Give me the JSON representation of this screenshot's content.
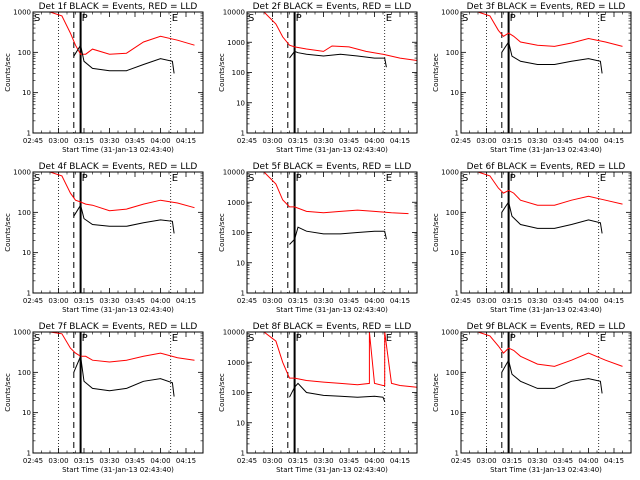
{
  "figure": {
    "panels": [
      {
        "det": "1f",
        "title": "Det 1f BLACK = Events, RED = LLD",
        "xlabel": "Start Time (31-Jan-13 02:43:40)",
        "ylabel": "Counts/sec"
      },
      {
        "det": "2f",
        "title": "Det 2f BLACK = Events, RED = LLD",
        "xlabel": "Start Time (31-Jan-13 02:43:40)",
        "ylabel": "Counts/sec"
      },
      {
        "det": "3f",
        "title": "Det 3f BLACK = Events, RED = LLD",
        "xlabel": "Start Time (31-Jan-13 02:43:40)",
        "ylabel": "Counts/sec"
      },
      {
        "det": "4f",
        "title": "Det 4f BLACK = Events, RED = LLD",
        "xlabel": "Start Time (31-Jan-13 02:43:40)",
        "ylabel": "Counts/sec"
      },
      {
        "det": "5f",
        "title": "Det 5f BLACK = Events, RED = LLD",
        "xlabel": "Start Time (31-Jan-13 02:43:40)",
        "ylabel": "Counts/sec"
      },
      {
        "det": "6f",
        "title": "Det 6f BLACK = Events, RED = LLD",
        "xlabel": "Start Time (31-Jan-13 02:43:40)",
        "ylabel": "Counts/sec"
      },
      {
        "det": "7f",
        "title": "Det 7f BLACK = Events, RED = LLD",
        "xlabel": "Start Time (31-Jan-13 02:43:40)",
        "ylabel": "Counts/sec"
      },
      {
        "det": "8f",
        "title": "Det 8f BLACK = Events, RED = LLD",
        "xlabel": "Start Time (31-Jan-13 02:43:40)",
        "ylabel": "Counts/sec"
      },
      {
        "det": "9f",
        "title": "Det 9f BLACK = Events, RED = LLD",
        "xlabel": "Start Time (31-Jan-13 02:43:40)",
        "ylabel": "Counts/sec"
      }
    ]
  },
  "chart_data": [
    {
      "type": "line",
      "title": "Det 1f BLACK = Events, RED = LLD",
      "xlabel": "Start Time (31-Jan-13 02:43:40)",
      "ylabel": "Counts/sec",
      "yscale": "log",
      "ylim": [
        1,
        1000
      ],
      "xlim": [
        "02:45",
        "04:25"
      ],
      "xticks": [
        "02:45",
        "03:00",
        "03:15",
        "03:30",
        "03:45",
        "04:00",
        "04:15"
      ],
      "yticks": [
        "1",
        "10",
        "100",
        "1000"
      ],
      "markers": {
        "S": "02:45",
        "P": "03:13",
        "E": "04:06"
      },
      "vlines": {
        "dotted": [
          "03:00",
          "04:06"
        ],
        "dashed": "03:09",
        "solid": "03:13"
      },
      "series": [
        {
          "color": "#ff0000",
          "x": [
            "02:45",
            "02:55",
            "03:02",
            "03:07",
            "03:10",
            "03:13",
            "03:16",
            "03:20",
            "03:30",
            "03:40",
            "03:50",
            "04:00",
            "04:10",
            "04:20"
          ],
          "y": [
            1000,
            1000,
            800,
            300,
            150,
            90,
            90,
            120,
            90,
            95,
            180,
            250,
            200,
            150
          ]
        },
        {
          "color": "#000000",
          "x": [
            "03:09",
            "03:13",
            "03:15",
            "03:20",
            "03:30",
            "03:40",
            "03:50",
            "04:00",
            "04:07",
            "04:08"
          ],
          "y": [
            80,
            150,
            60,
            40,
            35,
            35,
            50,
            70,
            60,
            30
          ]
        }
      ]
    },
    {
      "type": "line",
      "title": "Det 2f BLACK = Events, RED = LLD",
      "xlabel": "Start Time (31-Jan-13 02:43:40)",
      "ylabel": "Counts/sec",
      "yscale": "log",
      "ylim": [
        1,
        10000
      ],
      "xlim": [
        "02:45",
        "04:25"
      ],
      "xticks": [
        "02:45",
        "03:00",
        "03:15",
        "03:30",
        "03:45",
        "04:00",
        "04:15"
      ],
      "yticks": [
        "1",
        "10",
        "100",
        "1000",
        "10000"
      ],
      "markers": {
        "S": "02:45",
        "P": "03:13",
        "E": "04:06"
      },
      "vlines": {
        "dotted": [
          "03:00",
          "04:06"
        ],
        "dashed": "03:09",
        "solid": "03:13"
      },
      "series": [
        {
          "color": "#ff0000",
          "x": [
            "02:45",
            "02:55",
            "03:02",
            "03:06",
            "03:10",
            "03:13",
            "03:20",
            "03:30",
            "03:35",
            "03:45",
            "03:55",
            "04:05",
            "04:15",
            "04:25"
          ],
          "y": [
            10000,
            10000,
            4000,
            1500,
            800,
            700,
            600,
            500,
            750,
            700,
            500,
            400,
            300,
            250
          ]
        },
        {
          "color": "#000000",
          "x": [
            "03:10",
            "03:13",
            "03:15",
            "03:20",
            "03:30",
            "03:40",
            "03:50",
            "04:00",
            "04:06",
            "04:07"
          ],
          "y": [
            300,
            500,
            450,
            400,
            350,
            400,
            350,
            300,
            300,
            150
          ]
        }
      ]
    },
    {
      "type": "line",
      "title": "Det 3f BLACK = Events, RED = LLD",
      "xlabel": "Start Time (31-Jan-13 02:43:40)",
      "ylabel": "Counts/sec",
      "yscale": "log",
      "ylim": [
        1,
        1000
      ],
      "xlim": [
        "02:45",
        "04:25"
      ],
      "xticks": [
        "02:45",
        "03:00",
        "03:15",
        "03:30",
        "03:45",
        "04:00",
        "04:15"
      ],
      "yticks": [
        "1",
        "10",
        "100",
        "1000"
      ],
      "markers": {
        "S": "02:45",
        "P": "03:13",
        "E": "04:06"
      },
      "vlines": {
        "dotted": [
          "03:00",
          "04:06"
        ],
        "dashed": "03:09",
        "solid": "03:13"
      },
      "series": [
        {
          "color": "#ff0000",
          "x": [
            "02:45",
            "02:55",
            "03:02",
            "03:07",
            "03:10",
            "03:13",
            "03:16",
            "03:20",
            "03:30",
            "03:40",
            "03:50",
            "04:00",
            "04:10",
            "04:20"
          ],
          "y": [
            1000,
            1000,
            800,
            350,
            250,
            300,
            250,
            180,
            150,
            140,
            170,
            220,
            180,
            140
          ]
        },
        {
          "color": "#000000",
          "x": [
            "03:09",
            "03:13",
            "03:15",
            "03:20",
            "03:30",
            "03:40",
            "03:50",
            "04:00",
            "04:07",
            "04:08"
          ],
          "y": [
            100,
            180,
            80,
            60,
            50,
            50,
            60,
            70,
            60,
            30
          ]
        }
      ]
    },
    {
      "type": "line",
      "title": "Det 4f BLACK = Events, RED = LLD",
      "xlabel": "Start Time (31-Jan-13 02:43:40)",
      "ylabel": "Counts/sec",
      "yscale": "log",
      "ylim": [
        1,
        1000
      ],
      "xlim": [
        "02:45",
        "04:25"
      ],
      "xticks": [
        "02:45",
        "03:00",
        "03:15",
        "03:30",
        "03:45",
        "04:00",
        "04:15"
      ],
      "yticks": [
        "1",
        "10",
        "100",
        "1000"
      ],
      "markers": {
        "S": "02:45",
        "P": "03:13",
        "E": "04:06"
      },
      "vlines": {
        "dotted": [
          "03:00",
          "04:06"
        ],
        "dashed": "03:09",
        "solid": "03:13"
      },
      "series": [
        {
          "color": "#ff0000",
          "x": [
            "02:45",
            "02:55",
            "03:02",
            "03:07",
            "03:10",
            "03:13",
            "03:16",
            "03:20",
            "03:30",
            "03:40",
            "03:50",
            "04:00",
            "04:10",
            "04:20"
          ],
          "y": [
            1000,
            1000,
            800,
            300,
            200,
            180,
            160,
            150,
            110,
            120,
            160,
            200,
            170,
            130
          ]
        },
        {
          "color": "#000000",
          "x": [
            "03:09",
            "03:13",
            "03:15",
            "03:20",
            "03:30",
            "03:40",
            "03:50",
            "04:00",
            "04:07",
            "04:08"
          ],
          "y": [
            80,
            150,
            70,
            50,
            45,
            45,
            55,
            65,
            60,
            30
          ]
        }
      ]
    },
    {
      "type": "line",
      "title": "Det 5f BLACK = Events, RED = LLD",
      "xlabel": "Start Time (31-Jan-13 02:43:40)",
      "ylabel": "Counts/sec",
      "yscale": "log",
      "ylim": [
        1,
        10000
      ],
      "xlim": [
        "02:45",
        "04:25"
      ],
      "xticks": [
        "02:45",
        "03:00",
        "03:15",
        "03:30",
        "03:45",
        "04:00",
        "04:15"
      ],
      "yticks": [
        "1",
        "10",
        "100",
        "1000",
        "10000"
      ],
      "markers": {
        "S": "02:45",
        "P": "03:13",
        "E": "04:06"
      },
      "vlines": {
        "dotted": [
          "03:00",
          "04:06"
        ],
        "dashed": "03:09",
        "solid": "03:13"
      },
      "series": [
        {
          "color": "#ff0000",
          "x": [
            "02:45",
            "02:55",
            "03:02",
            "03:06",
            "03:10",
            "03:13",
            "03:20",
            "03:30",
            "03:40",
            "03:50",
            "04:00",
            "04:10",
            "04:20"
          ],
          "y": [
            10000,
            10000,
            4000,
            1200,
            700,
            700,
            500,
            450,
            500,
            550,
            500,
            450,
            420
          ]
        },
        {
          "color": "#000000",
          "x": [
            "03:10",
            "03:13",
            "03:15",
            "03:20",
            "03:30",
            "03:40",
            "03:50",
            "04:00",
            "04:06",
            "04:07"
          ],
          "y": [
            40,
            60,
            150,
            110,
            90,
            90,
            100,
            110,
            110,
            60
          ]
        }
      ]
    },
    {
      "type": "line",
      "title": "Det 6f BLACK = Events, RED = LLD",
      "xlabel": "Start Time (31-Jan-13 02:43:40)",
      "ylabel": "Counts/sec",
      "yscale": "log",
      "ylim": [
        1,
        1000
      ],
      "xlim": [
        "02:45",
        "04:25"
      ],
      "xticks": [
        "02:45",
        "03:00",
        "03:15",
        "03:30",
        "03:45",
        "04:00",
        "04:15"
      ],
      "yticks": [
        "1",
        "10",
        "100",
        "1000"
      ],
      "markers": {
        "S": "02:45",
        "P": "03:13",
        "E": "04:06"
      },
      "vlines": {
        "dotted": [
          "03:00",
          "04:06"
        ],
        "dashed": "03:09",
        "solid": "03:13"
      },
      "series": [
        {
          "color": "#ff0000",
          "x": [
            "02:45",
            "02:55",
            "03:02",
            "03:07",
            "03:10",
            "03:13",
            "03:16",
            "03:20",
            "03:30",
            "03:40",
            "03:50",
            "04:00",
            "04:10",
            "04:20"
          ],
          "y": [
            1000,
            1000,
            800,
            400,
            300,
            350,
            300,
            200,
            150,
            150,
            200,
            250,
            200,
            160
          ]
        },
        {
          "color": "#000000",
          "x": [
            "03:09",
            "03:13",
            "03:15",
            "03:20",
            "03:30",
            "03:40",
            "03:50",
            "04:00",
            "04:07",
            "04:08"
          ],
          "y": [
            100,
            180,
            80,
            50,
            40,
            40,
            50,
            65,
            55,
            30
          ]
        }
      ]
    },
    {
      "type": "line",
      "title": "Det 7f BLACK = Events, RED = LLD",
      "xlabel": "Start Time (31-Jan-13 02:43:40)",
      "ylabel": "Counts/sec",
      "yscale": "log",
      "ylim": [
        1,
        1000
      ],
      "xlim": [
        "02:45",
        "04:25"
      ],
      "xticks": [
        "02:45",
        "03:00",
        "03:15",
        "03:30",
        "03:45",
        "04:00",
        "04:15"
      ],
      "yticks": [
        "1",
        "10",
        "100",
        "1000"
      ],
      "markers": {
        "S": "02:45",
        "P": "03:13",
        "E": "04:06"
      },
      "vlines": {
        "dotted": [
          "03:00",
          "04:06"
        ],
        "dashed": "03:09",
        "solid": "03:13"
      },
      "series": [
        {
          "color": "#ff0000",
          "x": [
            "02:45",
            "02:55",
            "03:02",
            "03:07",
            "03:10",
            "03:13",
            "03:16",
            "03:20",
            "03:30",
            "03:40",
            "03:50",
            "04:00",
            "04:10",
            "04:20"
          ],
          "y": [
            1000,
            1000,
            900,
            400,
            300,
            250,
            250,
            200,
            180,
            200,
            250,
            300,
            230,
            200
          ]
        },
        {
          "color": "#000000",
          "x": [
            "03:09",
            "03:13",
            "03:15",
            "03:20",
            "03:30",
            "03:40",
            "03:50",
            "04:00",
            "04:07",
            "04:08"
          ],
          "y": [
            100,
            250,
            60,
            40,
            35,
            40,
            60,
            70,
            55,
            25
          ]
        }
      ]
    },
    {
      "type": "line",
      "title": "Det 8f BLACK = Events, RED = LLD",
      "xlabel": "Start Time (31-Jan-13 02:43:40)",
      "ylabel": "Counts/sec",
      "yscale": "log",
      "ylim": [
        1,
        10000
      ],
      "xlim": [
        "02:45",
        "04:25"
      ],
      "xticks": [
        "02:45",
        "03:00",
        "03:15",
        "03:30",
        "03:45",
        "04:00",
        "04:15"
      ],
      "yticks": [
        "1",
        "10",
        "100",
        "1000",
        "10000"
      ],
      "markers": {
        "S": "02:45",
        "P": "03:13",
        "E": "04:06"
      },
      "vlines": {
        "dotted": [
          "03:00",
          "04:06"
        ],
        "dashed": "03:09",
        "solid": "03:13"
      },
      "series": [
        {
          "color": "#ff0000",
          "x": [
            "02:45",
            "02:55",
            "03:02",
            "03:06",
            "03:10",
            "03:13",
            "03:20",
            "03:30",
            "03:40",
            "03:50",
            "03:57",
            "03:57",
            "04:00",
            "04:05",
            "04:06",
            "04:06",
            "04:10",
            "04:15",
            "04:25"
          ],
          "y": [
            10000,
            10000,
            5000,
            1000,
            300,
            300,
            250,
            220,
            200,
            180,
            200,
            10000,
            200,
            170,
            170,
            10000,
            200,
            170,
            150
          ]
        },
        {
          "color": "#000000",
          "x": [
            "03:10",
            "03:13",
            "03:15",
            "03:20",
            "03:30",
            "03:40",
            "03:50",
            "04:00",
            "04:05",
            "04:06"
          ],
          "y": [
            70,
            150,
            200,
            100,
            80,
            75,
            70,
            75,
            70,
            50
          ]
        }
      ]
    },
    {
      "type": "line",
      "title": "Det 9f BLACK = Events, RED = LLD",
      "xlabel": "Start Time (31-Jan-13 02:43:40)",
      "ylabel": "Counts/sec",
      "yscale": "log",
      "ylim": [
        1,
        1000
      ],
      "xlim": [
        "02:45",
        "04:25"
      ],
      "xticks": [
        "02:45",
        "03:00",
        "03:15",
        "03:30",
        "03:45",
        "04:00",
        "04:15"
      ],
      "yticks": [
        "1",
        "10",
        "100",
        "1000"
      ],
      "markers": {
        "S": "02:45",
        "P": "03:13",
        "E": "04:06"
      },
      "vlines": {
        "dotted": [
          "03:00",
          "04:06"
        ],
        "dashed": "03:09",
        "solid": "03:13"
      },
      "series": [
        {
          "color": "#ff0000",
          "x": [
            "02:45",
            "02:55",
            "03:02",
            "03:07",
            "03:10",
            "03:13",
            "03:16",
            "03:20",
            "03:30",
            "03:40",
            "03:50",
            "04:00",
            "04:10",
            "04:20"
          ],
          "y": [
            1000,
            1000,
            800,
            450,
            300,
            400,
            350,
            250,
            160,
            140,
            200,
            300,
            200,
            140
          ]
        },
        {
          "color": "#000000",
          "x": [
            "03:09",
            "03:13",
            "03:15",
            "03:20",
            "03:30",
            "03:40",
            "03:50",
            "04:00",
            "04:07",
            "04:08"
          ],
          "y": [
            100,
            200,
            90,
            60,
            40,
            40,
            60,
            70,
            60,
            30
          ]
        }
      ]
    }
  ]
}
